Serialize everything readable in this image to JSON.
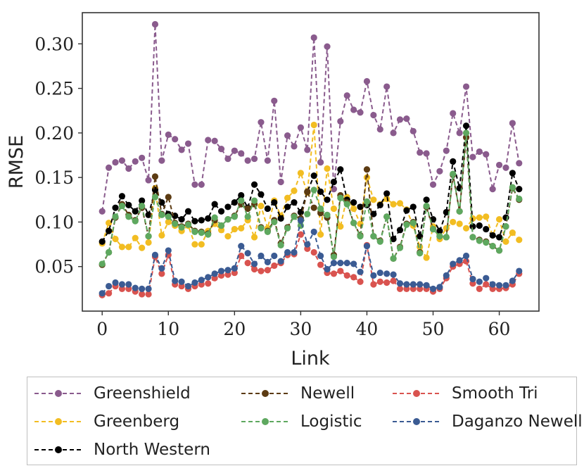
{
  "chart_data": {
    "type": "line",
    "xlabel": "Link",
    "ylabel": "RMSE",
    "xlim": [
      -3,
      66
    ],
    "ylim": [
      0.0,
      0.335
    ],
    "xticks": [
      0,
      10,
      20,
      30,
      40,
      50,
      60
    ],
    "xtick_labels": [
      "0",
      "10",
      "20",
      "30",
      "40",
      "50",
      "60"
    ],
    "yticks": [
      0.05,
      0.1,
      0.15,
      0.2,
      0.25,
      0.3
    ],
    "ytick_labels": [
      "0.05",
      "0.10",
      "0.15",
      "0.20",
      "0.25",
      "0.30"
    ],
    "grid": false,
    "legend_position": "below",
    "series": [
      {
        "name": "Greenshield",
        "color": "#8a5b8d",
        "values": [
          0.112,
          0.161,
          0.167,
          0.169,
          0.16,
          0.168,
          0.172,
          0.147,
          0.322,
          0.169,
          0.198,
          0.193,
          0.181,
          0.188,
          0.142,
          0.142,
          0.192,
          0.191,
          0.182,
          0.171,
          0.18,
          0.177,
          0.169,
          0.171,
          0.212,
          0.169,
          0.236,
          0.145,
          0.197,
          0.185,
          0.206,
          0.181,
          0.307,
          0.167,
          0.297,
          0.137,
          0.213,
          0.242,
          0.226,
          0.223,
          0.258,
          0.22,
          0.204,
          0.252,
          0.2,
          0.215,
          0.216,
          0.202,
          0.178,
          0.177,
          0.142,
          0.157,
          0.18,
          0.222,
          0.2,
          0.252,
          0.173,
          0.179,
          0.176,
          0.137,
          0.164,
          0.161,
          0.211,
          0.166
        ]
      },
      {
        "name": "Greenberg",
        "color": "#f2bd22",
        "values": [
          0.076,
          0.099,
          0.081,
          0.072,
          0.072,
          0.082,
          0.071,
          0.077,
          0.138,
          0.085,
          0.1,
          0.096,
          0.09,
          0.096,
          0.075,
          0.075,
          0.09,
          0.098,
          0.091,
          0.084,
          0.092,
          0.093,
          0.102,
          0.083,
          0.118,
          0.093,
          0.124,
          0.107,
          0.127,
          0.135,
          0.155,
          0.133,
          0.209,
          0.086,
          0.16,
          0.115,
          0.095,
          0.128,
          0.115,
          0.098,
          0.15,
          0.125,
          0.12,
          0.126,
          0.12,
          0.121,
          0.114,
          0.096,
          0.072,
          0.06,
          0.095,
          0.081,
          0.093,
          0.1,
          0.098,
          0.093,
          0.104,
          0.105,
          0.106,
          0.085,
          0.103,
          0.078,
          0.088,
          0.08
        ]
      },
      {
        "name": "North Western",
        "color": "#000000",
        "values": [
          0.078,
          0.09,
          0.116,
          0.129,
          0.119,
          0.112,
          0.124,
          0.108,
          0.136,
          0.122,
          0.109,
          0.107,
          0.103,
          0.112,
          0.101,
          0.102,
          0.104,
          0.12,
          0.112,
          0.117,
          0.122,
          0.13,
          0.116,
          0.142,
          0.131,
          0.115,
          0.122,
          0.104,
          0.117,
          0.122,
          0.111,
          0.134,
          0.152,
          0.134,
          0.125,
          0.145,
          0.159,
          0.125,
          0.122,
          0.117,
          0.119,
          0.109,
          0.119,
          0.132,
          0.081,
          0.091,
          0.113,
          0.117,
          0.084,
          0.125,
          0.103,
          0.09,
          0.111,
          0.168,
          0.138,
          0.208,
          0.095,
          0.096,
          0.092,
          0.085,
          0.083,
          0.105,
          0.155,
          0.137
        ]
      },
      {
        "name": "Newell",
        "color": "#5c3b12",
        "values": [
          0.052,
          0.066,
          0.105,
          0.12,
          0.108,
          0.102,
          0.116,
          0.084,
          0.151,
          0.109,
          0.128,
          0.099,
          0.095,
          0.098,
          0.09,
          0.089,
          0.087,
          0.102,
          0.096,
          0.103,
          0.107,
          0.12,
          0.115,
          0.12,
          0.094,
          0.09,
          0.102,
          0.076,
          0.094,
          0.107,
          0.104,
          0.134,
          0.116,
          0.11,
          0.105,
          0.063,
          0.13,
          0.122,
          0.099,
          0.085,
          0.159,
          0.084,
          0.079,
          0.106,
          0.059,
          0.072,
          0.098,
          0.1,
          0.066,
          0.117,
          0.092,
          0.084,
          0.083,
          0.153,
          0.112,
          0.195,
          0.083,
          0.08,
          0.078,
          0.073,
          0.068,
          0.095,
          0.138,
          0.125
        ]
      },
      {
        "name": "Logistic",
        "color": "#5ea85f",
        "values": [
          0.053,
          0.066,
          0.106,
          0.118,
          0.106,
          0.101,
          0.118,
          0.084,
          0.128,
          0.108,
          0.106,
          0.098,
          0.094,
          0.097,
          0.089,
          0.088,
          0.086,
          0.105,
          0.096,
          0.103,
          0.106,
          0.124,
          0.106,
          0.124,
          0.093,
          0.089,
          0.1,
          0.074,
          0.093,
          0.106,
          0.096,
          0.109,
          0.136,
          0.115,
          0.108,
          0.061,
          0.127,
          0.12,
          0.099,
          0.084,
          0.123,
          0.084,
          0.078,
          0.106,
          0.059,
          0.071,
          0.097,
          0.099,
          0.065,
          0.118,
          0.092,
          0.084,
          0.083,
          0.154,
          0.112,
          0.2,
          0.083,
          0.079,
          0.077,
          0.073,
          0.068,
          0.095,
          0.139,
          0.126
        ]
      },
      {
        "name": "Smooth Tri",
        "color": "#d9534f",
        "values": [
          0.018,
          0.02,
          0.028,
          0.025,
          0.025,
          0.022,
          0.019,
          0.019,
          0.061,
          0.042,
          0.063,
          0.03,
          0.028,
          0.025,
          0.028,
          0.03,
          0.031,
          0.037,
          0.04,
          0.041,
          0.043,
          0.062,
          0.054,
          0.047,
          0.045,
          0.046,
          0.051,
          0.054,
          0.063,
          0.064,
          0.086,
          0.07,
          0.066,
          0.052,
          0.043,
          0.042,
          0.045,
          0.04,
          0.038,
          0.033,
          0.074,
          0.03,
          0.033,
          0.032,
          0.034,
          0.025,
          0.025,
          0.025,
          0.025,
          0.025,
          0.022,
          0.025,
          0.037,
          0.05,
          0.053,
          0.056,
          0.031,
          0.025,
          0.03,
          0.025,
          0.025,
          0.026,
          0.03,
          0.042
        ]
      },
      {
        "name": "Daganzo Newell",
        "color": "#3b5b93",
        "values": [
          0.02,
          0.028,
          0.032,
          0.03,
          0.03,
          0.026,
          0.025,
          0.025,
          0.063,
          0.048,
          0.068,
          0.034,
          0.033,
          0.028,
          0.032,
          0.035,
          0.038,
          0.042,
          0.045,
          0.046,
          0.048,
          0.073,
          0.065,
          0.053,
          0.062,
          0.055,
          0.062,
          0.056,
          0.066,
          0.066,
          0.102,
          0.075,
          0.089,
          0.062,
          0.047,
          0.054,
          0.054,
          0.054,
          0.053,
          0.044,
          0.073,
          0.04,
          0.043,
          0.042,
          0.041,
          0.031,
          0.03,
          0.03,
          0.03,
          0.029,
          0.025,
          0.027,
          0.04,
          0.053,
          0.057,
          0.062,
          0.036,
          0.033,
          0.037,
          0.03,
          0.029,
          0.029,
          0.034,
          0.045
        ]
      }
    ]
  },
  "legend": {
    "items": [
      {
        "label": "Greenshield",
        "color": "#8a5b8d"
      },
      {
        "label": "Newell",
        "color": "#5c3b12"
      },
      {
        "label": "Smooth Tri",
        "color": "#d9534f"
      },
      {
        "label": "Greenberg",
        "color": "#f2bd22"
      },
      {
        "label": "Logistic",
        "color": "#5ea85f"
      },
      {
        "label": "Daganzo Newell",
        "color": "#3b5b93"
      },
      {
        "label": "North Western",
        "color": "#000000"
      }
    ]
  }
}
